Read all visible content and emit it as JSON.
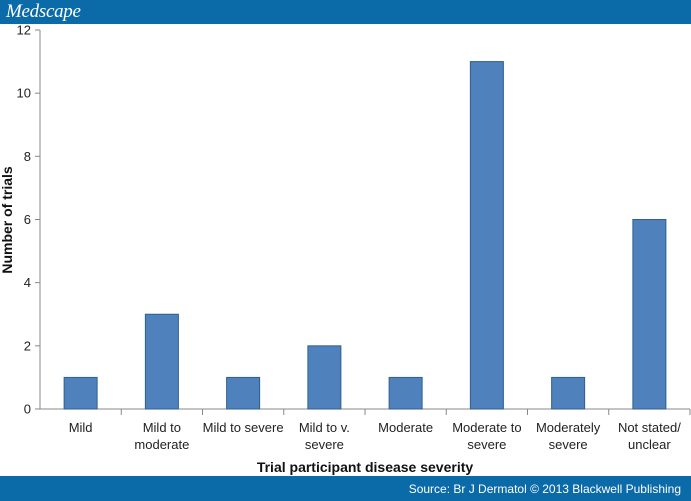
{
  "header": {
    "brand": "Medscape"
  },
  "footer": {
    "source": "Source: Br J Dermatol © 2013 Blackwell Publishing"
  },
  "chart_data": {
    "type": "bar",
    "title": "",
    "xlabel": "Trial participant disease severity",
    "ylabel": "Number of trials",
    "ylim": [
      0,
      12
    ],
    "yticks": [
      0,
      2,
      4,
      6,
      8,
      10,
      12
    ],
    "grid": false,
    "legend": "none",
    "bar_color": "#4f81bd",
    "categories": [
      [
        "Mild"
      ],
      [
        "Mild to",
        "moderate"
      ],
      [
        "Mild to severe"
      ],
      [
        "Mild to v.",
        "severe"
      ],
      [
        "Moderate"
      ],
      [
        "Moderate to",
        "severe"
      ],
      [
        "Moderately",
        "severe"
      ],
      [
        "Not stated/",
        "unclear"
      ]
    ],
    "values": [
      1,
      3,
      1,
      2,
      1,
      11,
      1,
      6
    ]
  }
}
